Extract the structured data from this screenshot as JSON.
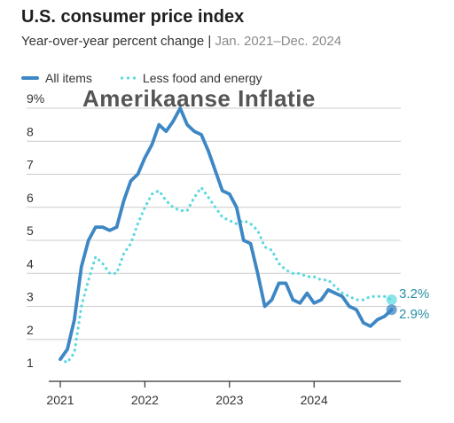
{
  "header": {
    "title": "U.S. consumer price index",
    "subtitle_main": "Year-over-year percent change | ",
    "subtitle_range": "Jan. 2021–Dec. 2024"
  },
  "overlay_text": "Amerikaanse Inflatie",
  "colors": {
    "all_items": "#3d87c4",
    "core": "#5cd8e0",
    "end_label": "#2a8fa3",
    "grid": "#cccccc"
  },
  "chart_data": {
    "type": "line",
    "title": "U.S. consumer price index",
    "subtitle": "Year-over-year percent change | Jan. 2021–Dec. 2024",
    "xlabel": "",
    "ylabel": "",
    "x_start": "2021-01",
    "x_ticks": [
      "2021",
      "2022",
      "2023",
      "2024"
    ],
    "y_ticks": [
      1,
      2,
      3,
      4,
      5,
      6,
      7,
      8,
      9
    ],
    "y_tick_labels": [
      "1",
      "2",
      "3",
      "4",
      "5",
      "6",
      "7",
      "8",
      "9%"
    ],
    "ylim": [
      1,
      9
    ],
    "grid": true,
    "legend": "top-left",
    "series": [
      {
        "name": "All items",
        "style": "solid",
        "values": [
          1.4,
          1.7,
          2.6,
          4.2,
          5.0,
          5.4,
          5.4,
          5.3,
          5.4,
          6.2,
          6.8,
          7.0,
          7.5,
          7.9,
          8.5,
          8.3,
          8.6,
          9.0,
          8.5,
          8.3,
          8.2,
          7.7,
          7.1,
          6.5,
          6.4,
          6.0,
          5.0,
          4.9,
          4.0,
          3.0,
          3.2,
          3.7,
          3.7,
          3.2,
          3.1,
          3.4,
          3.1,
          3.2,
          3.5,
          3.4,
          3.3,
          3.0,
          2.9,
          2.5,
          2.4,
          2.6,
          2.7,
          2.9
        ]
      },
      {
        "name": "Less food and energy",
        "style": "dotted",
        "values": [
          1.4,
          1.3,
          1.6,
          3.0,
          3.8,
          4.5,
          4.3,
          4.0,
          4.0,
          4.6,
          4.9,
          5.5,
          6.0,
          6.4,
          6.5,
          6.2,
          6.0,
          5.9,
          5.9,
          6.3,
          6.6,
          6.3,
          6.0,
          5.7,
          5.6,
          5.5,
          5.6,
          5.5,
          5.3,
          4.8,
          4.7,
          4.3,
          4.1,
          4.0,
          4.0,
          3.9,
          3.9,
          3.8,
          3.8,
          3.6,
          3.4,
          3.3,
          3.2,
          3.2,
          3.3,
          3.3,
          3.3,
          3.2
        ]
      }
    ],
    "end_labels": [
      "3.2%",
      "2.9%"
    ]
  }
}
